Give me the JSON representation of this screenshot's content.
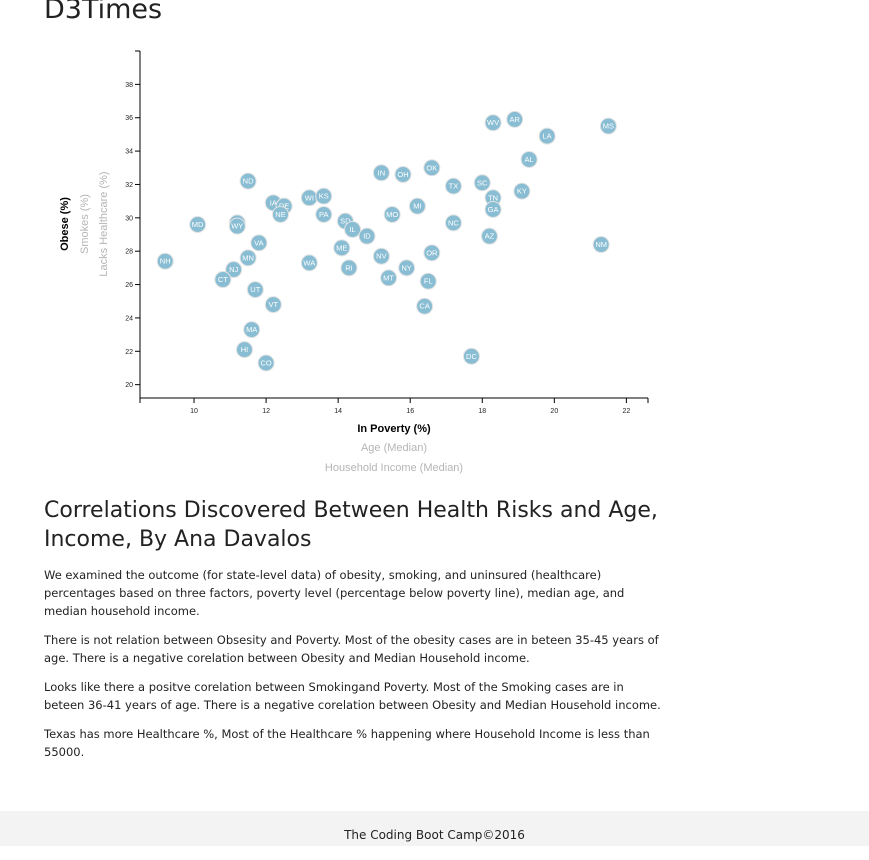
{
  "header": {
    "title": "D3Times"
  },
  "chart_data": {
    "type": "scatter",
    "x_axis": {
      "range": [
        8.5,
        22.6
      ],
      "ticks": [
        "10",
        "12",
        "14",
        "16",
        "18",
        "20",
        "22"
      ],
      "labels": [
        {
          "text": "In Poverty (%)",
          "active": true
        },
        {
          "text": "Age (Median)",
          "active": false
        },
        {
          "text": "Household Income (Median)",
          "active": false
        }
      ]
    },
    "y_axis": {
      "range": [
        19.2,
        40.0
      ],
      "ticks": [
        "20",
        "22",
        "24",
        "26",
        "28",
        "30",
        "32",
        "34",
        "36",
        "38"
      ],
      "labels": [
        {
          "text": "Obese (%)",
          "active": true
        },
        {
          "text": "Smokes (%)",
          "active": false
        },
        {
          "text": "Lacks Healthcare (%)",
          "active": false
        }
      ]
    },
    "points": [
      {
        "abbr": "WV",
        "x": 18.3,
        "y": 35.7
      },
      {
        "abbr": "AR",
        "x": 18.9,
        "y": 35.9
      },
      {
        "abbr": "MS",
        "x": 21.5,
        "y": 35.5
      },
      {
        "abbr": "LA",
        "x": 19.8,
        "y": 34.9
      },
      {
        "abbr": "AL",
        "x": 19.3,
        "y": 33.5
      },
      {
        "abbr": "OK",
        "x": 16.6,
        "y": 33.0
      },
      {
        "abbr": "IN",
        "x": 15.2,
        "y": 32.7
      },
      {
        "abbr": "OH",
        "x": 15.8,
        "y": 32.6
      },
      {
        "abbr": "ND",
        "x": 11.5,
        "y": 32.2
      },
      {
        "abbr": "SC",
        "x": 18.0,
        "y": 32.1
      },
      {
        "abbr": "TX",
        "x": 17.2,
        "y": 31.9
      },
      {
        "abbr": "KY",
        "x": 19.1,
        "y": 31.6
      },
      {
        "abbr": "TN",
        "x": 18.3,
        "y": 31.2
      },
      {
        "abbr": "WI",
        "x": 13.2,
        "y": 31.2
      },
      {
        "abbr": "KS",
        "x": 13.6,
        "y": 31.3
      },
      {
        "abbr": "IA",
        "x": 12.2,
        "y": 30.9
      },
      {
        "abbr": "DE",
        "x": 12.5,
        "y": 30.7
      },
      {
        "abbr": "MI",
        "x": 16.2,
        "y": 30.7
      },
      {
        "abbr": "GA",
        "x": 18.3,
        "y": 30.5
      },
      {
        "abbr": "NE",
        "x": 12.4,
        "y": 30.2
      },
      {
        "abbr": "PA",
        "x": 13.6,
        "y": 30.2
      },
      {
        "abbr": "MO",
        "x": 15.5,
        "y": 30.2
      },
      {
        "abbr": "SD",
        "x": 14.2,
        "y": 29.8
      },
      {
        "abbr": "NC",
        "x": 17.2,
        "y": 29.7
      },
      {
        "abbr": "MD",
        "x": 10.1,
        "y": 29.6
      },
      {
        "abbr": "WY",
        "x": 11.2,
        "y": 29.7
      },
      {
        "abbr": "WY",
        "x": 11.2,
        "y": 29.5
      },
      {
        "abbr": "IL",
        "x": 14.4,
        "y": 29.3
      },
      {
        "abbr": "ID",
        "x": 14.8,
        "y": 28.9
      },
      {
        "abbr": "AZ",
        "x": 18.2,
        "y": 28.9
      },
      {
        "abbr": "VA",
        "x": 11.8,
        "y": 28.5
      },
      {
        "abbr": "NM",
        "x": 21.3,
        "y": 28.4
      },
      {
        "abbr": "ME",
        "x": 14.1,
        "y": 28.2
      },
      {
        "abbr": "OR",
        "x": 16.6,
        "y": 27.9
      },
      {
        "abbr": "NV",
        "x": 15.2,
        "y": 27.7
      },
      {
        "abbr": "MN",
        "x": 11.5,
        "y": 27.6
      },
      {
        "abbr": "NH",
        "x": 9.2,
        "y": 27.4
      },
      {
        "abbr": "WA",
        "x": 13.2,
        "y": 27.3
      },
      {
        "abbr": "RI",
        "x": 14.3,
        "y": 27.0
      },
      {
        "abbr": "NY",
        "x": 15.9,
        "y": 27.0
      },
      {
        "abbr": "NJ",
        "x": 11.1,
        "y": 26.9
      },
      {
        "abbr": "CT",
        "x": 10.8,
        "y": 26.3
      },
      {
        "abbr": "MT",
        "x": 15.4,
        "y": 26.4
      },
      {
        "abbr": "FL",
        "x": 16.5,
        "y": 26.2
      },
      {
        "abbr": "UT",
        "x": 11.7,
        "y": 25.7
      },
      {
        "abbr": "VT",
        "x": 12.2,
        "y": 24.8
      },
      {
        "abbr": "CA",
        "x": 16.4,
        "y": 24.7
      },
      {
        "abbr": "MA",
        "x": 11.6,
        "y": 23.3
      },
      {
        "abbr": "HI",
        "x": 11.4,
        "y": 22.1
      },
      {
        "abbr": "DC",
        "x": 17.7,
        "y": 21.7
      },
      {
        "abbr": "CO",
        "x": 12.0,
        "y": 21.3
      }
    ]
  },
  "article": {
    "heading": "Correlations Discovered Between Health Risks and Age, Income, By Ana Davalos",
    "paragraphs": [
      "We examined the outcome (for state-level data) of obesity, smoking, and uninsured (healthcare) percentages based on three factors, poverty level (percentage below poverty line), median age, and median household income.",
      "There is not relation between Obsesity and Poverty. Most of the obesity cases are in beteen 35-45 years of age. There is a negative corelation between Obesity and Median Household income.",
      "Looks like there a positve corelation between Smokingand Poverty. Most of the Smoking cases are in beteen 36-41 years of age. There is a negative corelation between Obesity and Median Household income.",
      "Texas has more Healthcare %, Most of the Healthcare % happening where Household Income is less than 55000."
    ]
  },
  "footer": {
    "text": "The Coding Boot Camp©2016"
  },
  "colors": {
    "circle_fill": "#89bdd3",
    "active_label": "#000000",
    "inactive_label": "#b5b5b5",
    "footer_bg": "#f3f3f3"
  }
}
